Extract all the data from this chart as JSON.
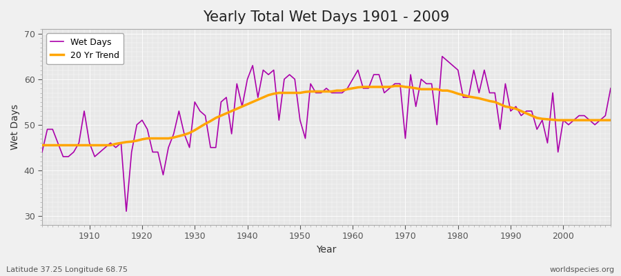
{
  "title": "Yearly Total Wet Days 1901 - 2009",
  "xlabel": "Year",
  "ylabel": "Wet Days",
  "footnote_left": "Latitude 37.25 Longitude 68.75",
  "footnote_right": "worldspecies.org",
  "ylim": [
    28,
    71
  ],
  "yticks": [
    30,
    40,
    50,
    60,
    70
  ],
  "xlim": [
    1901,
    2009
  ],
  "wet_days_color": "#AA00AA",
  "trend_color": "#FFA500",
  "bg_color": "#F0F0F0",
  "plot_bg_color": "#E8E8E8",
  "legend_wet": "Wet Days",
  "legend_trend": "20 Yr Trend",
  "years": [
    1901,
    1902,
    1903,
    1904,
    1905,
    1906,
    1907,
    1908,
    1909,
    1910,
    1911,
    1912,
    1913,
    1914,
    1915,
    1916,
    1917,
    1918,
    1919,
    1920,
    1921,
    1922,
    1923,
    1924,
    1925,
    1926,
    1927,
    1928,
    1929,
    1930,
    1931,
    1932,
    1933,
    1934,
    1935,
    1936,
    1937,
    1938,
    1939,
    1940,
    1941,
    1942,
    1943,
    1944,
    1945,
    1946,
    1947,
    1948,
    1949,
    1950,
    1951,
    1952,
    1953,
    1954,
    1955,
    1956,
    1957,
    1958,
    1959,
    1960,
    1961,
    1962,
    1963,
    1964,
    1965,
    1966,
    1967,
    1968,
    1969,
    1970,
    1971,
    1972,
    1973,
    1974,
    1975,
    1976,
    1977,
    1978,
    1979,
    1980,
    1981,
    1982,
    1983,
    1984,
    1985,
    1986,
    1987,
    1988,
    1989,
    1990,
    1991,
    1992,
    1993,
    1994,
    1995,
    1996,
    1997,
    1998,
    1999,
    2000,
    2001,
    2002,
    2003,
    2004,
    2005,
    2006,
    2007,
    2008,
    2009
  ],
  "wet_days": [
    44,
    49,
    49,
    46,
    43,
    43,
    44,
    46,
    53,
    46,
    43,
    44,
    45,
    46,
    45,
    46,
    31,
    44,
    50,
    51,
    49,
    44,
    44,
    39,
    45,
    48,
    53,
    48,
    45,
    55,
    53,
    52,
    45,
    45,
    55,
    56,
    48,
    59,
    54,
    60,
    63,
    56,
    62,
    61,
    62,
    51,
    60,
    61,
    60,
    51,
    47,
    59,
    57,
    57,
    58,
    57,
    57,
    57,
    58,
    60,
    62,
    58,
    58,
    61,
    61,
    57,
    58,
    59,
    59,
    47,
    61,
    54,
    60,
    59,
    59,
    50,
    65,
    64,
    63,
    62,
    56,
    56,
    62,
    57,
    62,
    57,
    57,
    49,
    59,
    53,
    54,
    52,
    53,
    53,
    49,
    51,
    46,
    57,
    44,
    51,
    50,
    51,
    52,
    52,
    51,
    50,
    51,
    52,
    58
  ],
  "trend": [
    45.5,
    45.5,
    45.5,
    45.5,
    45.5,
    45.5,
    45.5,
    45.5,
    45.5,
    45.5,
    45.5,
    45.5,
    45.5,
    45.5,
    45.8,
    46.0,
    46.2,
    46.3,
    46.5,
    46.8,
    47.0,
    47.0,
    47.0,
    47.0,
    47.0,
    47.2,
    47.5,
    47.8,
    48.2,
    48.8,
    49.5,
    50.2,
    50.8,
    51.5,
    52.0,
    52.5,
    53.0,
    53.5,
    54.0,
    54.5,
    55.0,
    55.5,
    56.0,
    56.5,
    56.8,
    57.0,
    57.0,
    57.0,
    57.0,
    57.0,
    57.2,
    57.3,
    57.3,
    57.3,
    57.3,
    57.3,
    57.5,
    57.5,
    57.8,
    58.0,
    58.2,
    58.3,
    58.3,
    58.3,
    58.3,
    58.3,
    58.3,
    58.5,
    58.5,
    58.3,
    58.2,
    58.0,
    57.8,
    57.8,
    57.8,
    57.8,
    57.5,
    57.5,
    57.2,
    56.8,
    56.5,
    56.2,
    56.0,
    55.8,
    55.5,
    55.2,
    55.0,
    54.5,
    54.0,
    53.8,
    53.5,
    53.0,
    52.5,
    52.0,
    51.5,
    51.3,
    51.2,
    51.1,
    51.0,
    51.0,
    51.0,
    51.0,
    51.0,
    51.0,
    51.0,
    51.0,
    51.0,
    51.0,
    51.0
  ]
}
